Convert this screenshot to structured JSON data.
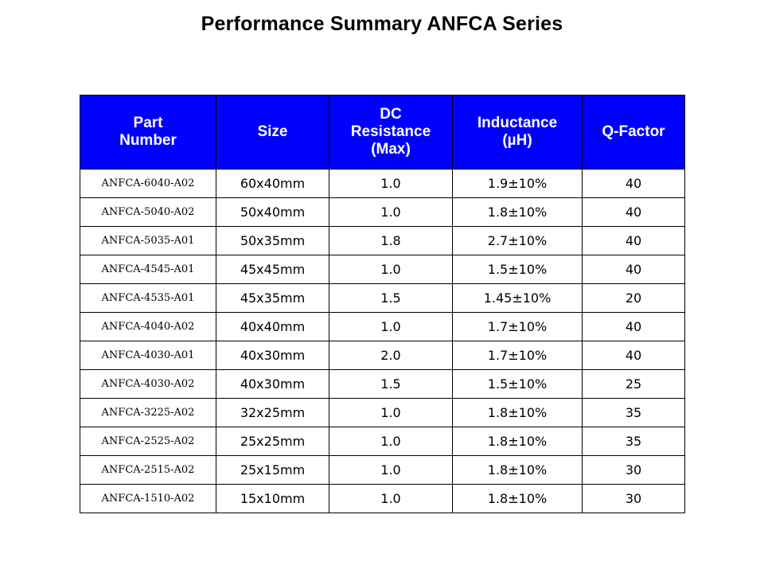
{
  "title": "Performance Summary ANFCA Series",
  "table": {
    "headers": [
      "Part\nNumber",
      "Size",
      "DC\nResistance\n(Max)",
      "Inductance\n(µH)",
      "Q-Factor"
    ],
    "rows": [
      [
        "ANFCA-6040-A02",
        "60x40mm",
        "1.0",
        "1.9±10%",
        "40"
      ],
      [
        "ANFCA-5040-A02",
        "50x40mm",
        "1.0",
        "1.8±10%",
        "40"
      ],
      [
        "ANFCA-5035-A01",
        "50x35mm",
        "1.8",
        "2.7±10%",
        "40"
      ],
      [
        "ANFCA-4545-A01",
        "45x45mm",
        "1.0",
        "1.5±10%",
        "40"
      ],
      [
        "ANFCA-4535-A01",
        "45x35mm",
        "1.5",
        "1.45±10%",
        "20"
      ],
      [
        "ANFCA-4040-A02",
        "40x40mm",
        "1.0",
        "1.7±10%",
        "40"
      ],
      [
        "ANFCA-4030-A01",
        "40x30mm",
        "2.0",
        "1.7±10%",
        "40"
      ],
      [
        "ANFCA-4030-A02",
        "40x30mm",
        "1.5",
        "1.5±10%",
        "25"
      ],
      [
        "ANFCA-3225-A02",
        "32x25mm",
        "1.0",
        "1.8±10%",
        "35"
      ],
      [
        "ANFCA-2525-A02",
        "25x25mm",
        "1.0",
        "1.8±10%",
        "35"
      ],
      [
        "ANFCA-2515-A02",
        "25x15mm",
        "1.0",
        "1.8±10%",
        "30"
      ],
      [
        "ANFCA-1510-A02",
        "15x10mm",
        "1.0",
        "1.8±10%",
        "30"
      ]
    ]
  },
  "colors": {
    "header_bg": "#0000ff",
    "header_text": "#ffffff",
    "border": "#000000"
  }
}
